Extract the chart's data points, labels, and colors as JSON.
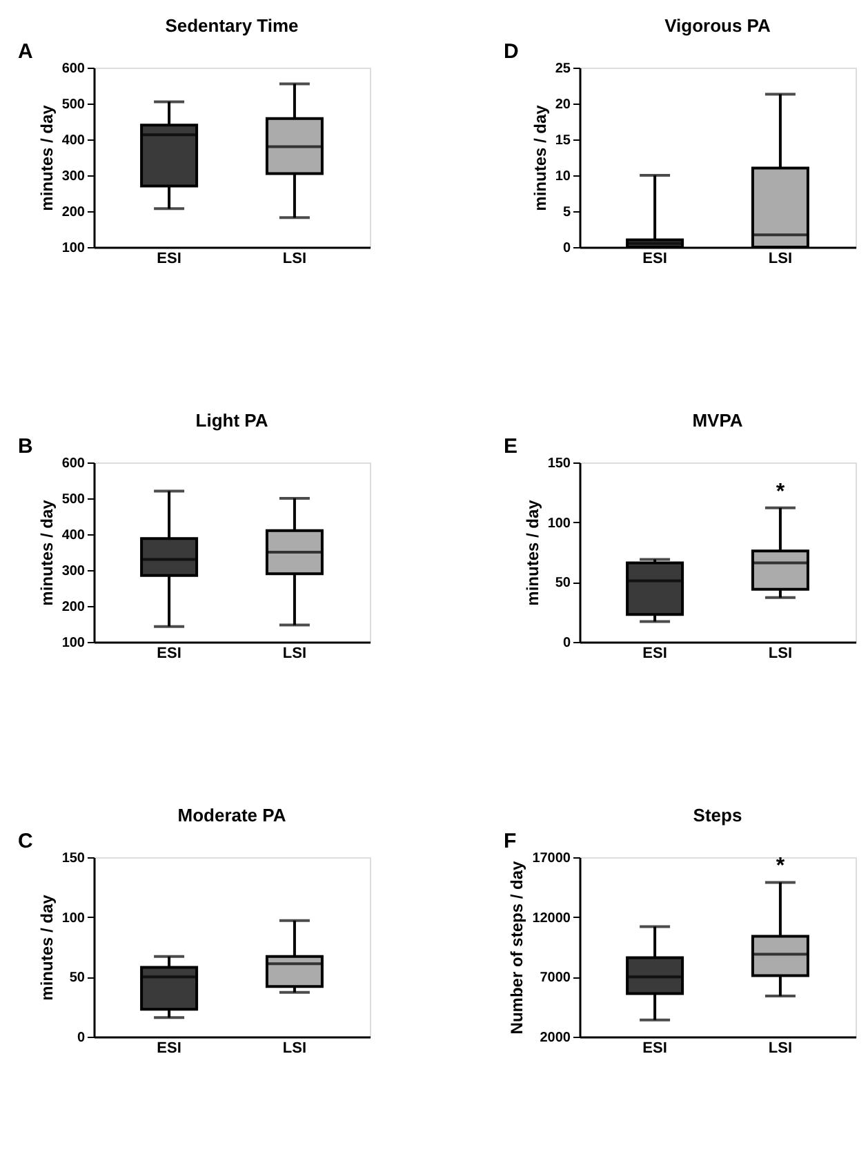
{
  "chart_data": [
    {
      "type": "box",
      "title": "Sedentary Time",
      "ylabel": "minutes / day",
      "categories": [
        "ESI",
        "LSI"
      ],
      "colors": [
        "#3a3a3a",
        "#ababab"
      ],
      "ylim": [
        100,
        600
      ],
      "yticks": [
        100,
        200,
        300,
        400,
        500,
        600
      ],
      "annotations": [
        "A"
      ],
      "boxes": [
        {
          "low": 207,
          "q1": 270,
          "median": 413,
          "q3": 440,
          "high": 505
        },
        {
          "low": 182,
          "q1": 305,
          "median": 380,
          "q3": 458,
          "high": 555
        }
      ]
    },
    {
      "type": "box",
      "title": "Vigorous PA",
      "ylabel": "minutes / day",
      "categories": [
        "ESI",
        "LSI"
      ],
      "colors": [
        "#3a3a3a",
        "#ababab"
      ],
      "ylim": [
        0,
        25
      ],
      "yticks": [
        0,
        5,
        10,
        15,
        20,
        25
      ],
      "annotations": [
        "D"
      ],
      "boxes": [
        {
          "low": 0,
          "q1": 0,
          "median": 0.5,
          "q3": 1,
          "high": 10
        },
        {
          "low": 0,
          "q1": 0,
          "median": 1.7,
          "q3": 11,
          "high": 21.3
        }
      ]
    },
    {
      "type": "box",
      "title": "Light PA",
      "ylabel": "minutes / day",
      "categories": [
        "ESI",
        "LSI"
      ],
      "colors": [
        "#3a3a3a",
        "#ababab"
      ],
      "ylim": [
        100,
        600
      ],
      "yticks": [
        100,
        200,
        300,
        400,
        500,
        600
      ],
      "annotations": [
        "B"
      ],
      "boxes": [
        {
          "low": 143,
          "q1": 285,
          "median": 330,
          "q3": 388,
          "high": 520
        },
        {
          "low": 147,
          "q1": 290,
          "median": 350,
          "q3": 410,
          "high": 500
        }
      ]
    },
    {
      "type": "box",
      "title": "MVPA",
      "ylabel": "minutes / day",
      "categories": [
        "ESI",
        "LSI"
      ],
      "colors": [
        "#3a3a3a",
        "#ababab"
      ],
      "ylim": [
        0,
        150
      ],
      "yticks": [
        0,
        50,
        100,
        150
      ],
      "annotations": [
        "E",
        "*"
      ],
      "boxes": [
        {
          "low": 17,
          "q1": 23,
          "median": 51,
          "q3": 66,
          "high": 69
        },
        {
          "low": 37,
          "q1": 44,
          "median": 66,
          "q3": 76,
          "high": 112
        }
      ]
    },
    {
      "type": "box",
      "title": "Moderate PA",
      "ylabel": "minutes / day",
      "categories": [
        "ESI",
        "LSI"
      ],
      "colors": [
        "#3a3a3a",
        "#ababab"
      ],
      "ylim": [
        0,
        150
      ],
      "yticks": [
        0,
        50,
        100,
        150
      ],
      "annotations": [
        "C"
      ],
      "boxes": [
        {
          "low": 16,
          "q1": 23,
          "median": 50,
          "q3": 58,
          "high": 67
        },
        {
          "low": 37,
          "q1": 42,
          "median": 61,
          "q3": 67,
          "high": 97
        }
      ]
    },
    {
      "type": "box",
      "title": "Steps",
      "ylabel": "Number of steps / day",
      "categories": [
        "ESI",
        "LSI"
      ],
      "colors": [
        "#3a3a3a",
        "#ababab"
      ],
      "ylim": [
        2000,
        17000
      ],
      "yticks": [
        2000,
        7000,
        12000,
        17000
      ],
      "annotations": [
        "F",
        "*"
      ],
      "boxes": [
        {
          "low": 3400,
          "q1": 5600,
          "median": 7000,
          "q3": 8600,
          "high": 11200
        },
        {
          "low": 5400,
          "q1": 7100,
          "median": 8900,
          "q3": 10400,
          "high": 14900
        }
      ]
    }
  ]
}
